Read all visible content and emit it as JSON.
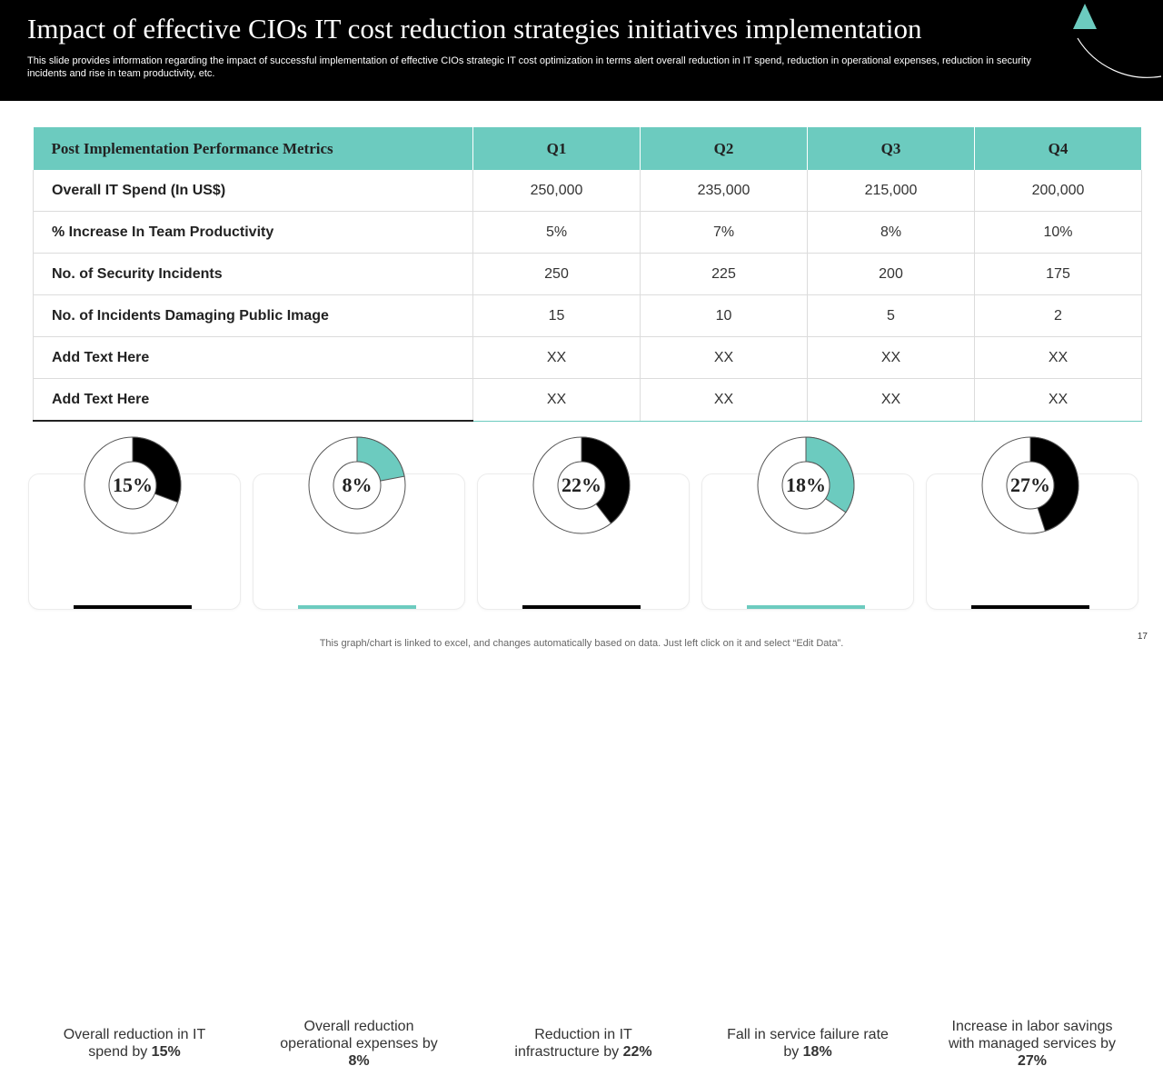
{
  "header": {
    "title": "Impact of effective CIOs IT cost reduction strategies  initiatives implementation",
    "subtitle": "This slide provides information regarding the impact of successful implementation of effective CIOs strategic IT cost optimization in terms alert overall reduction in IT spend, reduction in operational expenses, reduction in security incidents and rise in team productivity,  etc."
  },
  "colors": {
    "teal": "#6ccbbf",
    "black": "#000000"
  },
  "table": {
    "headers": [
      "Post Implementation Performance Metrics",
      "Q1",
      "Q2",
      "Q3",
      "Q4"
    ],
    "rows": [
      [
        "Overall IT Spend (In US$)",
        "250,000",
        "235,000",
        "215,000",
        "200,000"
      ],
      [
        "% Increase In Team Productivity",
        "5%",
        "7%",
        "8%",
        "10%"
      ],
      [
        "No. of Security Incidents",
        "250",
        "225",
        "200",
        "175"
      ],
      [
        "No. of Incidents Damaging Public Image",
        "15",
        "10",
        "5",
        "2"
      ],
      [
        "Add Text Here",
        "XX",
        "XX",
        "XX",
        "XX"
      ],
      [
        "Add Text Here",
        "XX",
        "XX",
        "XX",
        "XX"
      ]
    ]
  },
  "kpis": [
    {
      "value": 15,
      "label": "15%",
      "text_pre": "Overall reduction in IT spend by ",
      "text_bold": "15%",
      "color": "#000000"
    },
    {
      "value": 8,
      "label": "8%",
      "text_pre": "Overall reduction operational expenses by ",
      "text_bold": "8%",
      "color": "#6ccbbf"
    },
    {
      "value": 22,
      "label": "22%",
      "text_pre": "Reduction in IT infrastructure  by ",
      "text_bold": "22%",
      "color": "#000000"
    },
    {
      "value": 18,
      "label": "18%",
      "text_pre": "Fall in service failure rate by ",
      "text_bold": "18%",
      "color": "#6ccbbf"
    },
    {
      "value": 27,
      "label": "27%",
      "text_pre": "Increase in labor savings with managed services by ",
      "text_bold": "27%",
      "color": "#000000"
    }
  ],
  "footer": {
    "note": "This graph/chart is linked to excel,  and changes automatically based on data. Just left click on it and select “Edit Data”.",
    "page_number": "17"
  }
}
